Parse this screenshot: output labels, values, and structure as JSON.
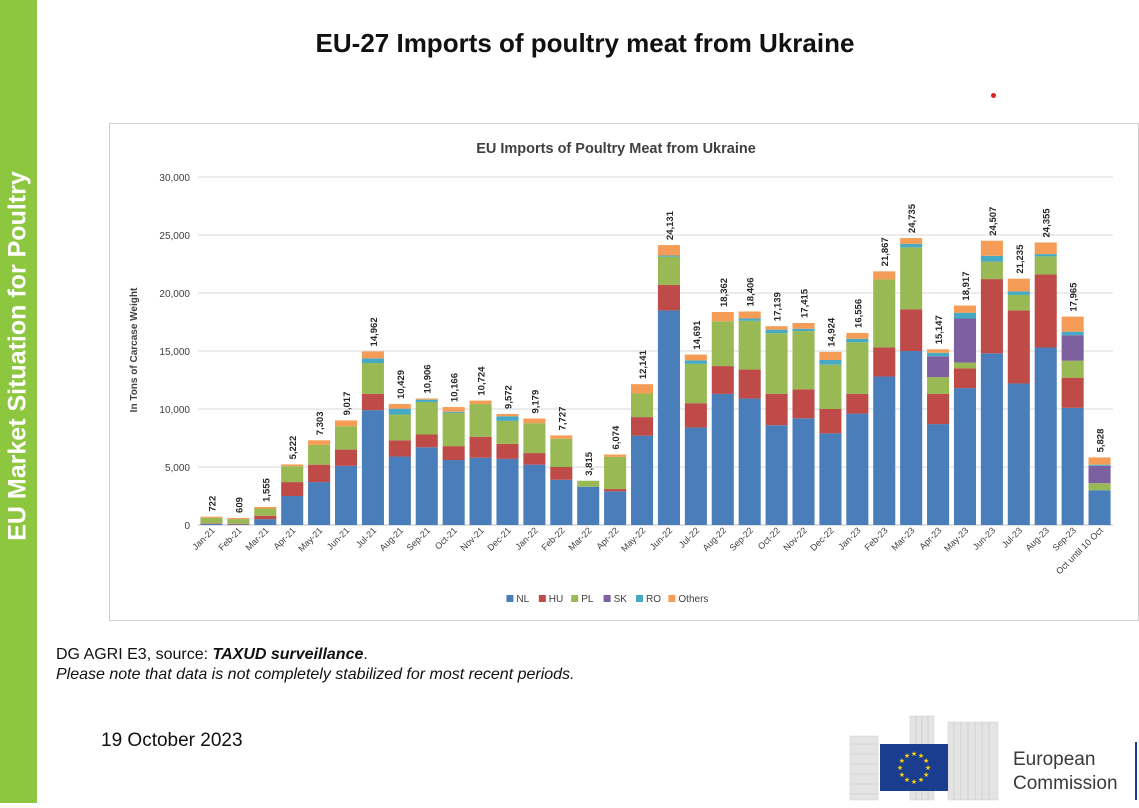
{
  "sidebar": {
    "label": "EU Market Situation for Poultry"
  },
  "page": {
    "title": "EU-27 Imports of poultry meat from Ukraine",
    "source_prefix": "DG AGRI E3, source: ",
    "source_name": "TAXUD surveillance",
    "source_suffix": ".",
    "note": "Please note that data is not completely stabilized for most recent periods.",
    "date": "19 October 2023"
  },
  "logo": {
    "line1": "European",
    "line2": "Commission"
  },
  "colors": {
    "sidebar": "#8dc63f",
    "eu_flag": "#1a3d8f",
    "eu_stars": "#ffd200"
  },
  "chart_data": {
    "type": "bar",
    "stacked": true,
    "title": "EU Imports of Poultry Meat from Ukraine",
    "ylabel": "In Tons of Carcase Weight",
    "xlabel": "",
    "ylim": [
      0,
      30000
    ],
    "yticks": [
      0,
      5000,
      10000,
      15000,
      20000,
      25000,
      30000
    ],
    "ytick_labels": [
      "0",
      "5,000",
      "10,000",
      "15,000",
      "20,000",
      "25,000",
      "30,000"
    ],
    "grid": true,
    "legend_position": "bottom",
    "categories": [
      "Jan-21",
      "Feb-21",
      "Mar-21",
      "Apr-21",
      "May-21",
      "Jun-21",
      "Jul-21",
      "Aug-21",
      "Sep-21",
      "Oct-21",
      "Nov-21",
      "Dec-21",
      "Jan-22",
      "Feb-22",
      "Mar-22",
      "Apr-22",
      "May-22",
      "Jun-22",
      "Jul-22",
      "Aug-22",
      "Sep-22",
      "Oct-22",
      "Nov-22",
      "Dec-22",
      "Jan-23",
      "Feb-23",
      "Mar-23",
      "Apr-23",
      "May-23",
      "Jun-23",
      "Jul-23",
      "Aug-23",
      "Sep-23",
      "Oct until 10 Oct"
    ],
    "totals": [
      722,
      609,
      1555,
      5222,
      7303,
      9017,
      14962,
      10429,
      10906,
      10166,
      10724,
      9572,
      9179,
      7727,
      3815,
      6074,
      12141,
      24131,
      14691,
      18362,
      18406,
      17139,
      17415,
      14924,
      16556,
      21867,
      24735,
      15147,
      18917,
      24507,
      21235,
      24355,
      17965,
      5828
    ],
    "total_labels": [
      "722",
      "609",
      "1,555",
      "5,222",
      "7,303",
      "9,017",
      "14,962",
      "10,429",
      "10,906",
      "10,166",
      "10,724",
      "9,572",
      "9,179",
      "7,727",
      "3,815",
      "6,074",
      "12,141",
      "24,131",
      "14,691",
      "18,362",
      "18,406",
      "17,139",
      "17,415",
      "14,924",
      "16,556",
      "21,867",
      "24,735",
      "15,147",
      "18,917",
      "24,507",
      "21,235",
      "24,355",
      "17,965",
      "5,828"
    ],
    "series": [
      {
        "name": "NL",
        "color": "#4a7ebb",
        "values": [
          100,
          50,
          500,
          2500,
          3700,
          5100,
          9900,
          5900,
          6700,
          5600,
          5800,
          5700,
          5200,
          3900,
          3300,
          2900,
          7700,
          18500,
          8400,
          11300,
          10900,
          8600,
          9200,
          7900,
          9600,
          12800,
          15000,
          8700,
          11800,
          14800,
          12200,
          15300,
          10100,
          3000
        ]
      },
      {
        "name": "HU",
        "color": "#be4b48",
        "values": [
          50,
          50,
          300,
          1200,
          1500,
          1400,
          1400,
          1400,
          1100,
          1200,
          1800,
          1300,
          1000,
          1100,
          0,
          200,
          1600,
          2200,
          2100,
          2400,
          2500,
          2700,
          2500,
          2100,
          1700,
          2500,
          3600,
          2600,
          1700,
          6400,
          6300,
          6300,
          2600,
          0
        ]
      },
      {
        "name": "PL",
        "color": "#98b954",
        "values": [
          472,
          409,
          620,
          1372,
          1703,
          2017,
          2662,
          2229,
          2806,
          2866,
          2824,
          1972,
          2579,
          2427,
          515,
          2774,
          2041,
          2431,
          3391,
          3862,
          4206,
          5239,
          5015,
          3824,
          4456,
          5867,
          5335,
          1447,
          500,
          1507,
          1335,
          1555,
          1465,
          600
        ]
      },
      {
        "name": "SK",
        "color": "#7d60a0",
        "values": [
          0,
          0,
          0,
          0,
          0,
          0,
          0,
          0,
          0,
          0,
          0,
          0,
          0,
          0,
          0,
          0,
          0,
          0,
          0,
          0,
          0,
          0,
          0,
          0,
          0,
          0,
          0,
          1800,
          3800,
          0,
          0,
          0,
          2200,
          1500
        ]
      },
      {
        "name": "RO",
        "color": "#46aac5",
        "values": [
          0,
          0,
          0,
          0,
          0,
          0,
          400,
          500,
          200,
          100,
          0,
          400,
          0,
          0,
          0,
          0,
          0,
          100,
          300,
          0,
          200,
          300,
          200,
          400,
          300,
          0,
          300,
          300,
          500,
          500,
          300,
          200,
          300,
          100
        ]
      },
      {
        "name": "Others",
        "color": "#f59d56",
        "values": [
          100,
          100,
          135,
          150,
          400,
          500,
          600,
          400,
          100,
          400,
          300,
          200,
          400,
          300,
          0,
          200,
          800,
          900,
          500,
          800,
          600,
          300,
          500,
          700,
          500,
          700,
          500,
          300,
          617,
          1300,
          1100,
          1000,
          1300,
          628
        ]
      }
    ]
  }
}
